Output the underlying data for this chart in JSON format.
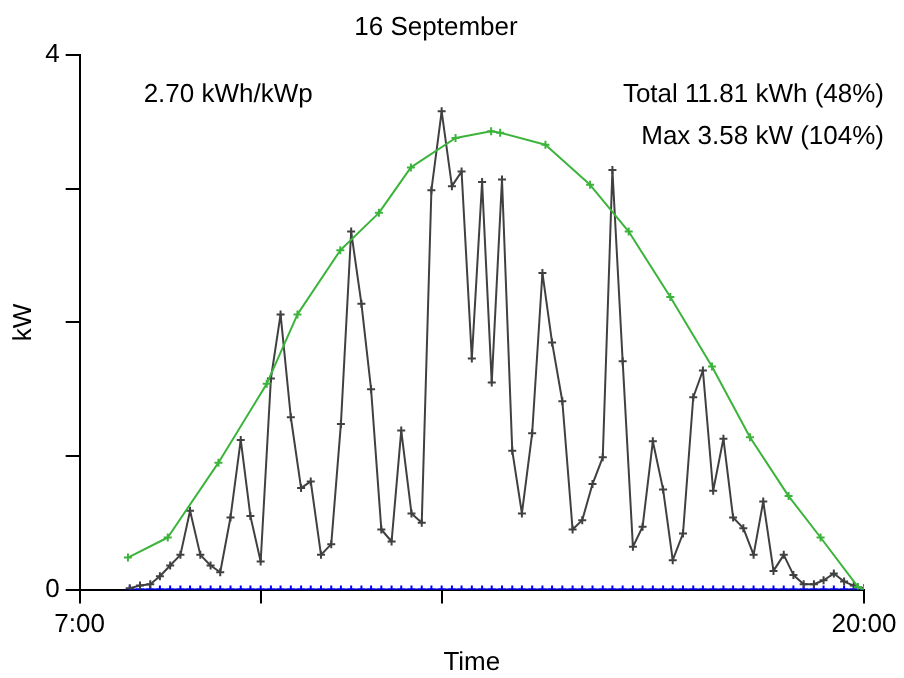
{
  "chart_data": {
    "type": "line",
    "title": "16 September",
    "xlabel": "Time",
    "ylabel": "kW",
    "annotations": [
      "2.70 kWh/kWp",
      "Total 11.81 kWh (48%)",
      "Max 3.58 kW (104%)"
    ],
    "x": [
      7.83,
      8,
      8.17,
      8.33,
      8.5,
      8.67,
      8.83,
      9,
      9.17,
      9.33,
      9.5,
      9.67,
      9.83,
      10,
      10.17,
      10.33,
      10.5,
      10.67,
      10.83,
      11,
      11.17,
      11.33,
      11.5,
      11.67,
      11.83,
      12,
      12.17,
      12.33,
      12.5,
      12.67,
      12.83,
      13,
      13.17,
      13.33,
      13.5,
      13.67,
      13.83,
      14,
      14.17,
      14.33,
      14.5,
      14.67,
      14.83,
      15,
      15.17,
      15.33,
      15.5,
      15.67,
      15.83,
      16,
      16.17,
      16.33,
      16.5,
      16.67,
      16.83,
      17,
      17.17,
      17.33,
      17.5,
      17.67,
      17.83,
      18,
      18.17,
      18.33,
      18.5,
      18.67,
      18.83,
      19,
      19.17,
      19.33,
      19.5,
      19.67,
      19.83,
      20
    ],
    "series": [
      {
        "color": "#3cb43c",
        "x": [
          7.8,
          8.46,
          9.3,
          10.1,
          10.61,
          11.32,
          11.96,
          12.49,
          13.23,
          13.82,
          13.97,
          14.72,
          15.46,
          16.1,
          16.79,
          17.48,
          18.11,
          18.75,
          19.28,
          19.9,
          20
        ],
        "values": [
          0.24,
          0.39,
          0.95,
          1.54,
          2.06,
          2.54,
          2.82,
          3.16,
          3.38,
          3.43,
          3.42,
          3.33,
          3.03,
          2.68,
          2.19,
          1.67,
          1.14,
          0.7,
          0.39,
          0.02,
          0
        ]
      },
      {
        "color": "#404040",
        "values": [
          0.01,
          0.03,
          0.04,
          0.1,
          0.18,
          0.26,
          0.59,
          0.26,
          0.18,
          0.13,
          0.54,
          1.12,
          0.55,
          0.21,
          1.58,
          2.06,
          1.29,
          0.76,
          0.81,
          0.26,
          0.34,
          1.24,
          2.68,
          2.14,
          1.5,
          0.45,
          0.36,
          1.19,
          0.57,
          0.5,
          2.99,
          3.58,
          3.02,
          3.13,
          1.73,
          3.05,
          1.55,
          3.07,
          1.04,
          0.57,
          1.17,
          2.37,
          1.85,
          1.41,
          0.45,
          0.52,
          0.79,
          0.99,
          3.14,
          1.71,
          0.32,
          0.47,
          1.11,
          0.75,
          0.22,
          0.42,
          1.44,
          1.64,
          0.74,
          1.13,
          0.54,
          0.46,
          0.26,
          0.66,
          0.14,
          0.26,
          0.11,
          0.04,
          0.04,
          0.07,
          0.12,
          0.06,
          0.03,
          0.01
        ]
      },
      {
        "color": "#0000ff",
        "values": [
          0,
          0,
          0,
          0,
          0,
          0,
          0,
          0,
          0,
          0,
          0,
          0,
          0,
          0,
          0,
          0,
          0,
          0,
          0,
          0,
          0,
          0,
          0,
          0,
          0,
          0,
          0,
          0,
          0,
          0,
          0,
          0,
          0,
          0,
          0,
          0,
          0,
          0,
          0,
          0,
          0,
          0,
          0,
          0,
          0,
          0,
          0,
          0,
          0,
          0,
          0,
          0,
          0,
          0,
          0,
          0,
          0,
          0,
          0,
          0,
          0,
          0,
          0,
          0,
          0,
          0,
          0,
          0,
          0,
          0,
          0,
          0,
          0,
          0
        ]
      }
    ],
    "xlim": [
      7,
      20
    ],
    "xticks": [
      {
        "value": 7,
        "label": "7:00"
      },
      {
        "value": 10,
        "label": null
      },
      {
        "value": 13,
        "label": null
      },
      {
        "value": 20,
        "label": "20:00"
      }
    ],
    "ylim": [
      0,
      4
    ],
    "yticks": [
      0,
      {
        "value": 1,
        "label": null
      },
      {
        "value": 2,
        "label": null
      },
      {
        "value": 3,
        "label": null
      },
      4
    ],
    "grid": false,
    "legend": false,
    "marker": "cross",
    "line_style": "solid"
  }
}
